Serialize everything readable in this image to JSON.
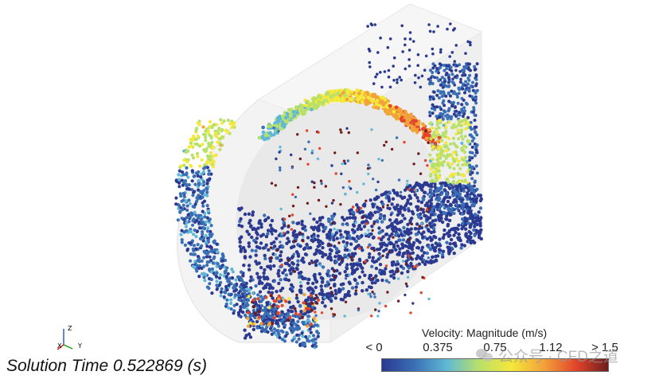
{
  "scene": {
    "solution_time_label": "Solution Time 0.522869 (s)",
    "triad": {
      "z_label": "Z",
      "x_label": "X",
      "y_label": "Y"
    }
  },
  "legend": {
    "title": "Velocity: Magnitude (m/s)",
    "ticks": [
      "< 0",
      "0.375",
      "0.75",
      "1.12",
      "> 1.5"
    ],
    "colors": [
      "#2b3990",
      "#3a6fb5",
      "#5fb9d6",
      "#b8e06a",
      "#f4e83a",
      "#f2a33a",
      "#e2452b",
      "#6e1d1d"
    ]
  },
  "watermark": {
    "text": "公众号 · CFD之道"
  }
}
